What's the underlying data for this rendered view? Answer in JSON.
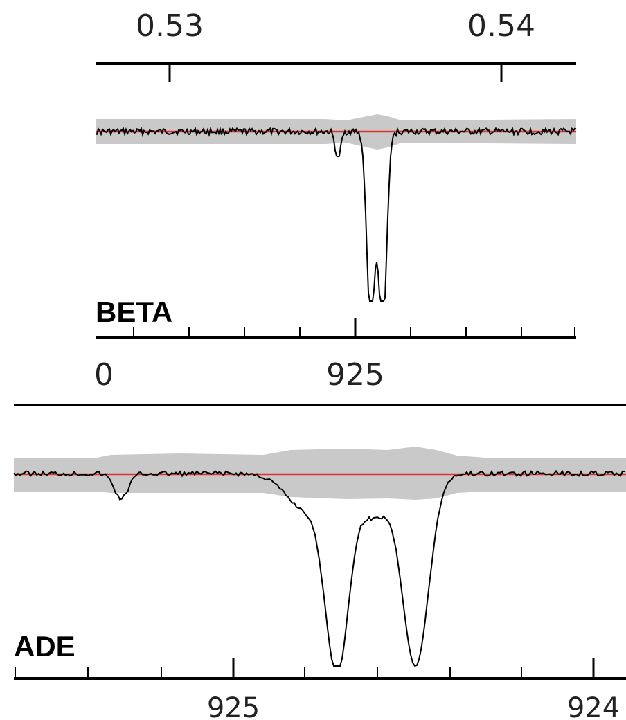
{
  "chart_data": [
    {
      "type": "line",
      "panel_label": "BETA",
      "top_axis_ticks": [
        "0.53",
        "0.54"
      ],
      "bottom_axis_ticks": [
        "0",
        "925"
      ],
      "series": [
        {
          "color": "#000000"
        }
      ],
      "continuum_color": "#e0332f",
      "error_band_color": "#c9c9c9",
      "features": [
        {
          "kind": "weak_absorption",
          "depth": 0.2
        },
        {
          "kind": "absorption",
          "depth": 1.0
        },
        {
          "kind": "absorption",
          "depth": 1.0
        }
      ]
    },
    {
      "type": "line",
      "panel_label": "ADE",
      "bottom_axis_ticks": [
        "925",
        "924"
      ],
      "series": [
        {
          "color": "#000000"
        }
      ],
      "continuum_color": "#e0332f",
      "error_band_color": "#c9c9c9",
      "features": [
        {
          "kind": "weak_absorption",
          "depth": 0.15
        },
        {
          "kind": "absorption",
          "depth": 1.0
        },
        {
          "kind": "absorption",
          "depth": 1.0
        }
      ]
    }
  ]
}
